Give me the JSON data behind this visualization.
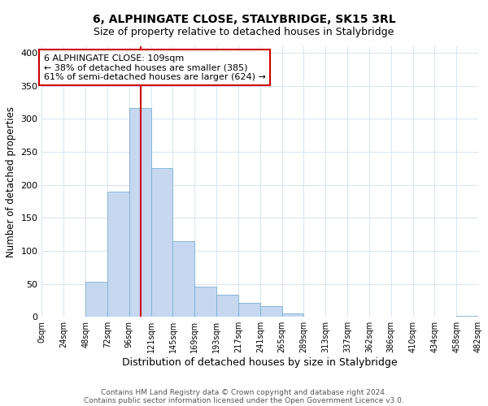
{
  "title": "6, ALPHINGATE CLOSE, STALYBRIDGE, SK15 3RL",
  "subtitle": "Size of property relative to detached houses in Stalybridge",
  "xlabel": "Distribution of detached houses by size in Stalybridge",
  "ylabel": "Number of detached properties",
  "bin_edges": [
    0,
    24,
    48,
    72,
    96,
    120,
    144,
    168,
    192,
    216,
    240,
    264,
    288,
    312,
    336,
    360,
    384,
    408,
    432,
    456,
    480
  ],
  "bin_labels": [
    "0sqm",
    "24sqm",
    "48sqm",
    "72sqm",
    "96sqm",
    "121sqm",
    "145sqm",
    "169sqm",
    "193sqm",
    "217sqm",
    "241sqm",
    "265sqm",
    "289sqm",
    "313sqm",
    "337sqm",
    "362sqm",
    "386sqm",
    "410sqm",
    "434sqm",
    "458sqm",
    "482sqm"
  ],
  "counts": [
    0,
    0,
    53,
    190,
    317,
    226,
    115,
    46,
    33,
    21,
    16,
    5,
    0,
    0,
    0,
    0,
    0,
    0,
    0,
    2
  ],
  "bar_color": "#c5d8f0",
  "bar_edge_color": "#7bafd4",
  "property_sqm": 109,
  "vline_color": "#cc0000",
  "annotation_line1": "6 ALPHINGATE CLOSE: 109sqm",
  "annotation_line2": "← 38% of detached houses are smaller (385)",
  "annotation_line3": "61% of semi-detached houses are larger (624) →",
  "annotation_box_color": "#ffffff",
  "annotation_box_edge": "#cc0000",
  "ylim": [
    0,
    410
  ],
  "yticks": [
    0,
    50,
    100,
    150,
    200,
    250,
    300,
    350,
    400
  ],
  "footer1": "Contains HM Land Registry data © Crown copyright and database right 2024.",
  "footer2": "Contains public sector information licensed under the Open Government Licence v3.0.",
  "bg_color": "#ffffff",
  "grid_color": "#d8e4f0",
  "title_fontsize": 10,
  "subtitle_fontsize": 9
}
